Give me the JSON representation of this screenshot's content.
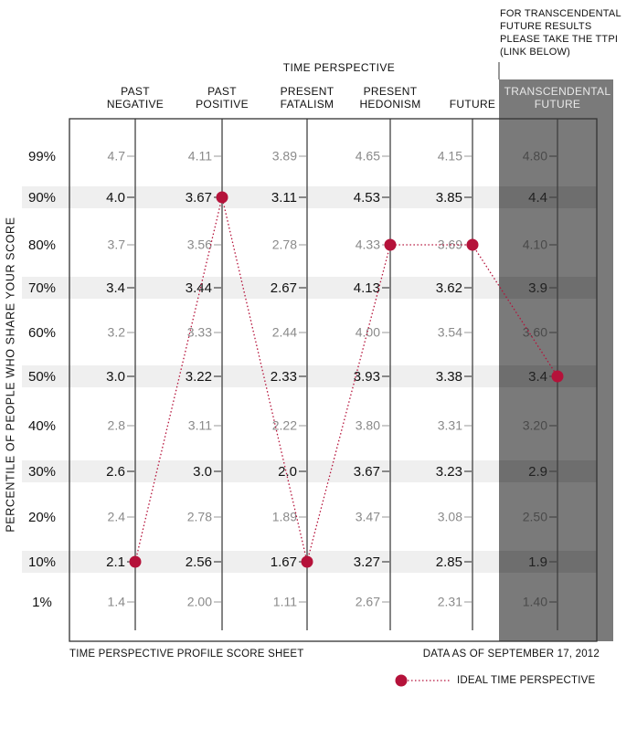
{
  "note_text": "FOR TRANSCENDENTAL FUTURE RESULTS PLEASE TAKE THE TTPI (LINK BELOW)",
  "footer": {
    "left": "TIME PERSPECTIVE PROFILE SCORE SHEET",
    "right": "DATA AS OF SEPTEMBER 17, 2012"
  },
  "legend": {
    "label": "IDEAL TIME PERSPECTIVE"
  },
  "colors": {
    "accent": "#b5123a",
    "band": "#efefef",
    "shaded_panel": "#7a7a7a",
    "frame": "#333333"
  },
  "chart_data": {
    "type": "table",
    "title": "TIME PERSPECTIVE",
    "ylabel": "PERCENTILE OF PEOPLE WHO SHARE YOUR SCORE",
    "percentiles": [
      "99%",
      "90%",
      "80%",
      "70%",
      "60%",
      "50%",
      "40%",
      "30%",
      "20%",
      "10%",
      "1%"
    ],
    "banded_rows": [
      "90%",
      "70%",
      "50%",
      "30%",
      "10%"
    ],
    "columns": [
      {
        "label": "PAST NEGATIVE",
        "values": [
          "4.7",
          "4.0",
          "3.7",
          "3.4",
          "3.2",
          "3.0",
          "2.8",
          "2.6",
          "2.4",
          "2.1",
          "1.4"
        ]
      },
      {
        "label": "PAST POSITIVE",
        "values": [
          "4.11",
          "3.67",
          "3.56",
          "3.44",
          "3.33",
          "3.22",
          "3.11",
          "3.0",
          "2.78",
          "2.56",
          "2.00"
        ]
      },
      {
        "label": "PRESENT FATALISM",
        "values": [
          "3.89",
          "3.11",
          "2.78",
          "2.67",
          "2.44",
          "2.33",
          "2.22",
          "2.0",
          "1.89",
          "1.67",
          "1.11"
        ]
      },
      {
        "label": "PRESENT HEDONISM",
        "values": [
          "4.65",
          "4.53",
          "4.33",
          "4.13",
          "4.00",
          "3.93",
          "3.80",
          "3.67",
          "3.47",
          "3.27",
          "2.67"
        ]
      },
      {
        "label": "FUTURE",
        "values": [
          "4.15",
          "3.85",
          "3.69",
          "3.62",
          "3.54",
          "3.38",
          "3.31",
          "3.23",
          "3.08",
          "2.85",
          "2.31"
        ]
      },
      {
        "label": "TRANSCENDENTAL FUTURE",
        "values": [
          "4.80",
          "4.4",
          "4.10",
          "3.9",
          "3.60",
          "3.4",
          "3.20",
          "2.9",
          "2.50",
          "1.9",
          "1.40"
        ],
        "shaded": true
      }
    ],
    "ideal_profile": {
      "name": "IDEAL TIME PERSPECTIVE",
      "points": [
        {
          "column": "PAST NEGATIVE",
          "percentile": "10%",
          "value": "2.1"
        },
        {
          "column": "PAST POSITIVE",
          "percentile": "90%",
          "value": "3.67"
        },
        {
          "column": "PRESENT FATALISM",
          "percentile": "10%",
          "value": "1.67"
        },
        {
          "column": "PRESENT HEDONISM",
          "percentile": "80%",
          "value": "4.33"
        },
        {
          "column": "FUTURE",
          "percentile": "80%",
          "value": "3.69"
        },
        {
          "column": "TRANSCENDENTAL FUTURE",
          "percentile": "50%",
          "value": "3.4"
        }
      ]
    }
  }
}
